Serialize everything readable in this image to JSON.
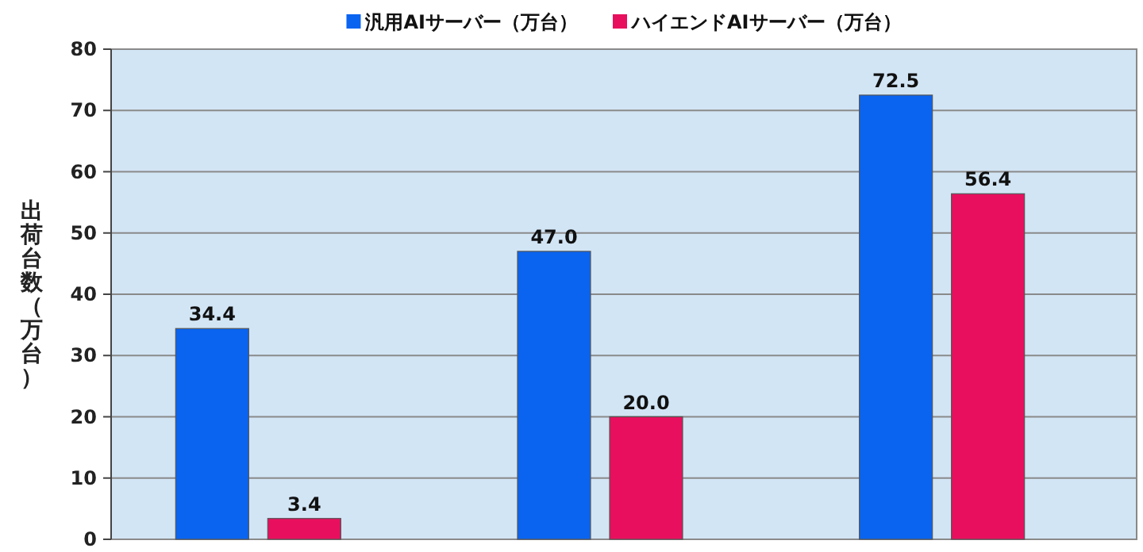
{
  "chart_data": {
    "type": "bar",
    "ylabel": "出荷台数（万台）",
    "categories": [
      null,
      null,
      null
    ],
    "series": [
      {
        "name": "汎用AIサーバー（万台）",
        "color": "#0a64f0",
        "values": [
          34.4,
          47.0,
          72.5
        ],
        "value_labels": [
          "34.4",
          "47.0",
          "72.5"
        ]
      },
      {
        "name": "ハイエンドAIサーバー（万台）",
        "color": "#e8105e",
        "values": [
          3.4,
          20.0,
          56.4
        ],
        "value_labels": [
          "3.4",
          "20.0",
          "56.4"
        ]
      }
    ],
    "ylim": [
      0,
      80
    ],
    "yticks": [
      0,
      10,
      20,
      30,
      40,
      50,
      60,
      70,
      80
    ],
    "grid": "y",
    "legend": "top"
  }
}
